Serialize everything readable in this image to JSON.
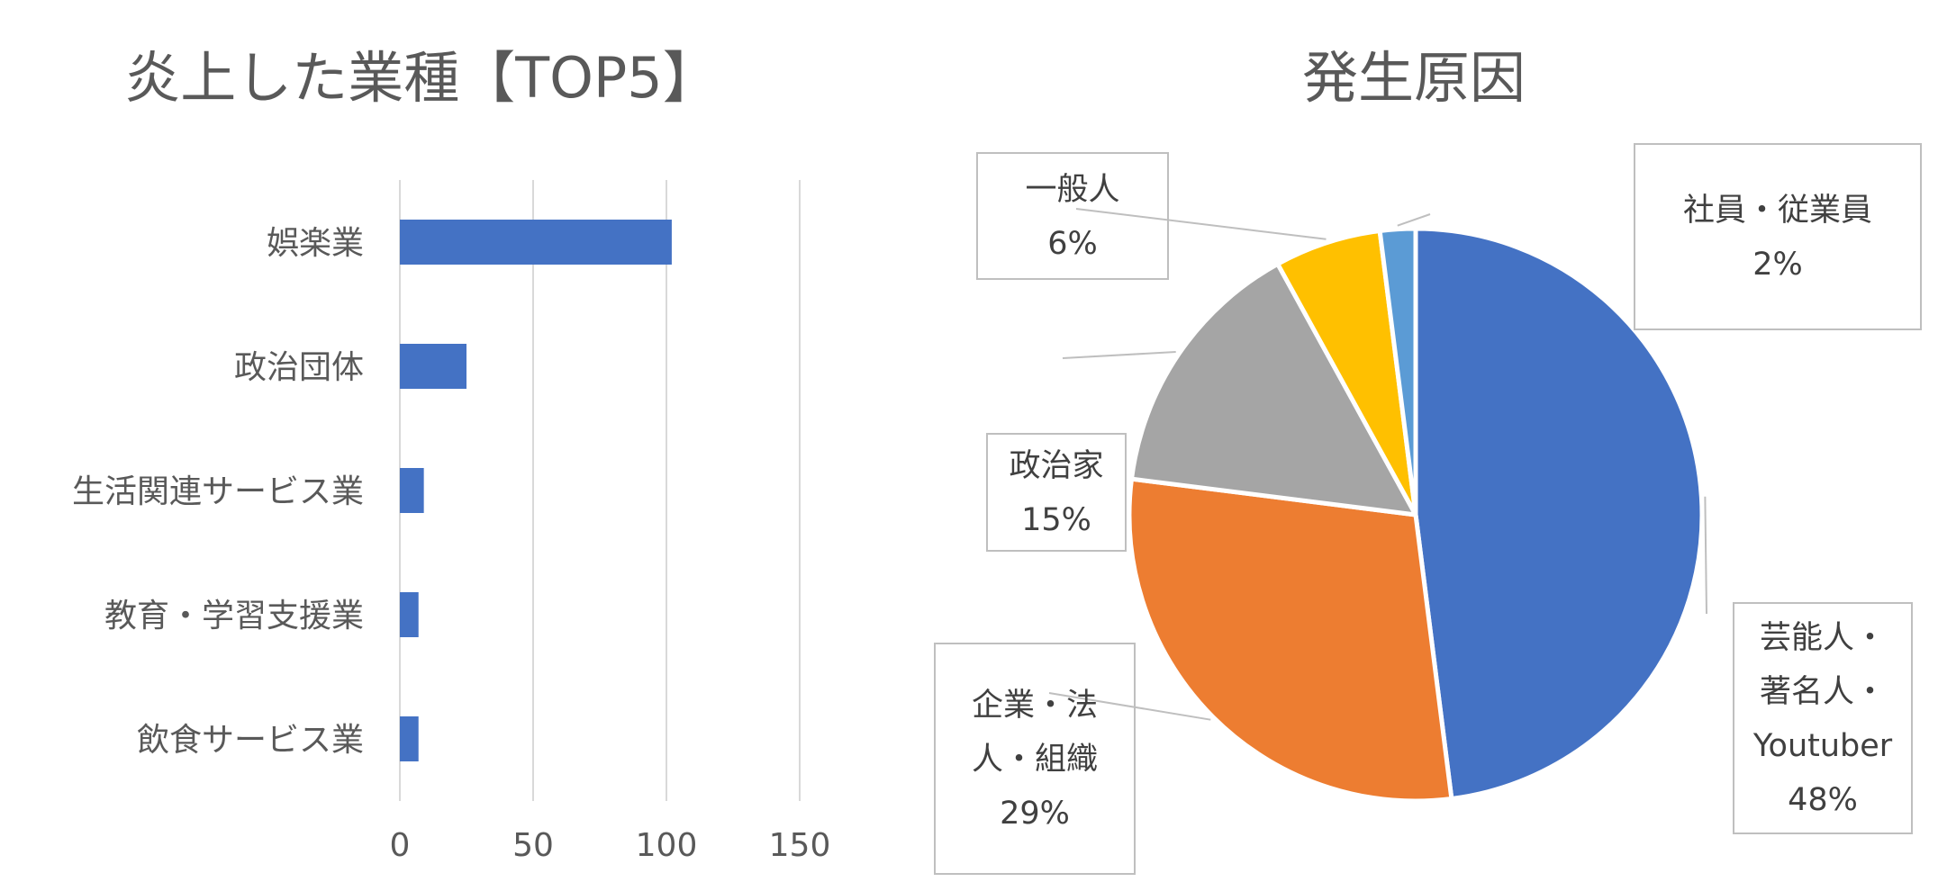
{
  "chart_data": [
    {
      "type": "bar",
      "orientation": "horizontal",
      "title": "炎上した業種【TOP5】",
      "categories": [
        "娯楽業",
        "政治団体",
        "生活関連サービス業",
        "教育・学習支援業",
        "飲食サービス業"
      ],
      "values": [
        102,
        25,
        9,
        7,
        7
      ],
      "x_ticks": [
        "0",
        "50",
        "100",
        "150"
      ],
      "xlim": [
        0,
        150
      ],
      "grid": true,
      "bar_color": "#4472C4"
    },
    {
      "type": "pie",
      "title": "発生原因",
      "slices": [
        {
          "label": "芸能人・著名人・Youtuber",
          "label_lines": [
            "芸能人・",
            "著名人・",
            "Youtuber"
          ],
          "pct_text": "48%",
          "value": 48,
          "color": "#4472C4"
        },
        {
          "label": "企業・法人・組織",
          "label_lines": [
            "企業・法",
            "人・組織"
          ],
          "pct_text": "29%",
          "value": 29,
          "color": "#ED7D31"
        },
        {
          "label": "政治家",
          "label_lines": [
            "政治家"
          ],
          "pct_text": "15%",
          "value": 15,
          "color": "#A5A5A5"
        },
        {
          "label": "一般人",
          "label_lines": [
            "一般人"
          ],
          "pct_text": "6%",
          "value": 6,
          "color": "#FFC000"
        },
        {
          "label": "社員・従業員",
          "label_lines": [
            "社員・従業員"
          ],
          "pct_text": "2%",
          "value": 2,
          "color": "#5B9BD5"
        }
      ]
    }
  ]
}
